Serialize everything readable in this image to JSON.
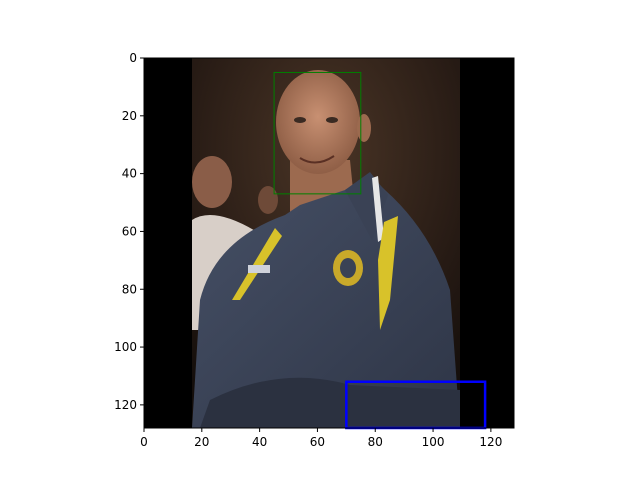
{
  "figure": {
    "x_ticks": [
      "0",
      "20",
      "40",
      "60",
      "80",
      "100",
      "120"
    ],
    "y_ticks": [
      "0",
      "20",
      "40",
      "60",
      "80",
      "100",
      "120"
    ],
    "extent": {
      "x": [
        0,
        128
      ],
      "y": [
        0,
        128
      ]
    },
    "boxes": [
      {
        "name": "face-box",
        "color": "#008000",
        "x0": 45,
        "y0": 5,
        "x1": 75,
        "y1": 47,
        "stroke": 1
      },
      {
        "name": "blue-box",
        "color": "#0000ff",
        "x0": 70,
        "y0": 112,
        "x1": 118,
        "y1": 128,
        "stroke": 2.5
      }
    ],
    "photo_colors": {
      "padding": "#000000",
      "background": "#2a1f1a",
      "jacket": "#3b4356",
      "jacket_shadow": "#2b3140",
      "skin": "#b07a5c",
      "stripe_yellow": "#d8c22a",
      "stripe_white": "#e6e6e6"
    }
  }
}
